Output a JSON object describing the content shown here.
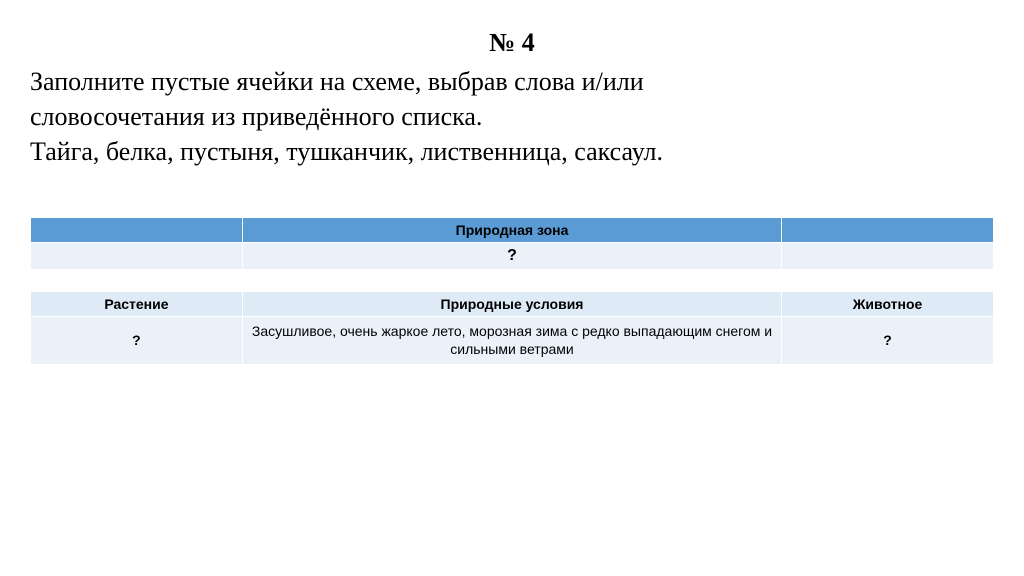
{
  "heading": "№ 4",
  "prompt_line1": "Заполните пустые ячейки на схеме, выбрав слова и/или",
  "prompt_line2": "словосочетания из приведённого списка.",
  "prompt_line3": " Тайга, белка, пустыня, тушканчик, лиственница, саксаул.",
  "table": {
    "header_color": "#5b9bd5",
    "light_band": "#eaf1f8",
    "sub_band": "#deeaf6",
    "row_zone": {
      "left": "",
      "mid": "Природная зона",
      "right": ""
    },
    "row_zone_val": {
      "left": "",
      "mid": "?",
      "right": ""
    },
    "row_sub": {
      "left": "Растение",
      "mid": "Природные условия",
      "right": "Животное"
    },
    "row_data": {
      "left": "?",
      "mid": "Засушливое, очень жаркое лето, морозная зима с редко выпадающим снегом и сильными ветрами",
      "right": "?"
    }
  }
}
